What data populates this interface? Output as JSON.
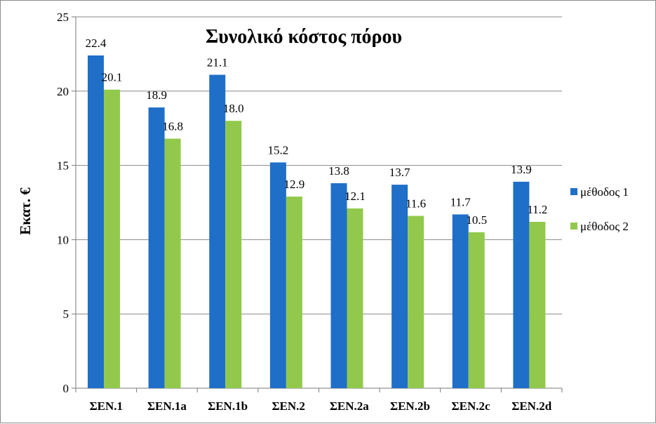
{
  "chart_data": {
    "type": "bar",
    "title": "Συνολικό κόστος πόρου",
    "xlabel": "",
    "ylabel": "Εκατ. €",
    "ylim": [
      0,
      25
    ],
    "yticks": [
      0,
      5,
      10,
      15,
      20,
      25
    ],
    "grid": true,
    "legend_position": "right",
    "categories": [
      "ΣΕΝ.1",
      "ΣΕΝ.1a",
      "ΣΕΝ.1b",
      "ΣΕΝ.2",
      "ΣΕΝ.2a",
      "ΣΕΝ.2b",
      "ΣΕΝ.2c",
      "ΣΕΝ.2d"
    ],
    "series": [
      {
        "name": "μέθοδος 1",
        "color": "#1f6fc8",
        "values": [
          22.4,
          18.9,
          21.1,
          15.2,
          13.8,
          13.7,
          11.7,
          13.9
        ]
      },
      {
        "name": "μέθοδος 2",
        "color": "#92c94c",
        "values": [
          20.1,
          16.8,
          18.0,
          12.9,
          12.1,
          11.6,
          10.5,
          11.2
        ]
      }
    ]
  }
}
